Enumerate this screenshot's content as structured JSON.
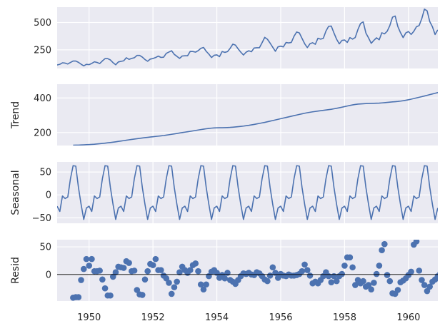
{
  "chart_data": {
    "type": "line",
    "x_range": [
      1949.0,
      1960.92
    ],
    "x_ticks": [
      1950,
      1952,
      1954,
      1956,
      1958,
      1960
    ],
    "x_tick_labels": [
      "1950",
      "1952",
      "1954",
      "1956",
      "1958",
      "1960"
    ],
    "panels": [
      {
        "name": "observed",
        "ylabel": "",
        "kind": "line",
        "ylim": [
          80,
          640
        ],
        "y_ticks": [
          250,
          500
        ],
        "y_tick_labels": [
          "250",
          "500"
        ],
        "x_start": 1949.0,
        "step": 0.0833333,
        "values": [
          112,
          118,
          132,
          129,
          121,
          135,
          148,
          148,
          136,
          119,
          104,
          118,
          115,
          126,
          141,
          135,
          125,
          149,
          170,
          170,
          158,
          133,
          114,
          140,
          145,
          150,
          178,
          163,
          172,
          178,
          199,
          199,
          184,
          162,
          146,
          166,
          171,
          180,
          193,
          181,
          183,
          218,
          230,
          242,
          209,
          191,
          172,
          194,
          196,
          196,
          236,
          235,
          229,
          243,
          264,
          272,
          237,
          211,
          180,
          201,
          204,
          188,
          235,
          227,
          234,
          264,
          302,
          293,
          259,
          229,
          203,
          229,
          242,
          233,
          267,
          269,
          270,
          315,
          364,
          347,
          312,
          274,
          237,
          278,
          284,
          277,
          317,
          313,
          318,
          374,
          413,
          405,
          355,
          306,
          271,
          306,
          315,
          301,
          356,
          348,
          355,
          422,
          465,
          467,
          404,
          347,
          305,
          336,
          340,
          318,
          362,
          348,
          363,
          435,
          491,
          505,
          404,
          359,
          310,
          337,
          360,
          342,
          406,
          396,
          420,
          472,
          548,
          559,
          463,
          407,
          362,
          405,
          417,
          391,
          419,
          461,
          472,
          535,
          622,
          606,
          508,
          461,
          390,
          432
        ]
      },
      {
        "name": "trend",
        "ylabel": "Trend",
        "kind": "line",
        "ylim": [
          125,
          480
        ],
        "y_ticks": [
          200,
          400
        ],
        "y_tick_labels": [
          "200",
          "400"
        ],
        "x_start": 1949.5,
        "step": 0.0833333,
        "values": [
          126.8,
          127.2,
          127.6,
          128.3,
          129.0,
          129.8,
          130.6,
          131.6,
          132.6,
          134.0,
          135.5,
          137.0,
          138.8,
          140.6,
          142.4,
          144.5,
          146.6,
          148.9,
          151.0,
          153.4,
          155.7,
          158.0,
          160.2,
          162.4,
          164.6,
          166.6,
          168.5,
          170.5,
          172.4,
          174.2,
          176.0,
          177.6,
          179.1,
          180.9,
          182.8,
          185.2,
          187.5,
          190.0,
          192.5,
          195.0,
          197.5,
          200.0,
          202.4,
          204.8,
          207.0,
          209.6,
          212.2,
          214.8,
          217.4,
          219.8,
          222.0,
          223.8,
          225.6,
          226.8,
          227.6,
          227.9,
          228.1,
          228.4,
          229.0,
          229.8,
          231.0,
          232.5,
          234.0,
          235.8,
          237.5,
          239.8,
          242.0,
          244.6,
          247.2,
          250.0,
          253.0,
          256.0,
          259.0,
          262.5,
          266.0,
          269.6,
          273.0,
          276.6,
          280.2,
          283.8,
          287.4,
          291.0,
          294.5,
          298.0,
          301.5,
          305.0,
          308.5,
          311.8,
          314.8,
          317.5,
          320.0,
          322.2,
          324.5,
          326.6,
          328.6,
          330.6,
          332.7,
          334.9,
          337.5,
          340.5,
          343.6,
          347.0,
          350.3,
          353.7,
          357.0,
          360.0,
          362.5,
          364.5,
          365.8,
          366.8,
          367.6,
          368.2,
          368.7,
          369.2,
          369.7,
          370.4,
          371.6,
          373.0,
          374.5,
          376.0,
          377.5,
          378.8,
          380.1,
          382.0,
          384.2,
          387.0,
          390.0,
          393.4,
          397.0,
          400.6,
          404.2,
          407.8,
          411.5,
          415.5,
          419.5,
          423.5,
          427.5,
          431.3,
          435.0,
          438.5,
          442.0,
          445.5,
          449.0,
          452.5,
          456.0,
          459.5,
          462.5,
          465.5,
          468.0,
          470.5
        ]
      },
      {
        "name": "seasonal",
        "ylabel": "Seasonal",
        "kind": "line",
        "ylim": [
          -62,
          72
        ],
        "y_ticks": [
          -50,
          0,
          50
        ],
        "y_tick_labels": [
          "−50",
          "0",
          "50"
        ],
        "x_start": 1949.0,
        "pattern": [
          -24.75,
          -36.19,
          -2.24,
          -8.04,
          -4.51,
          35.4,
          63.83,
          62.82,
          16.52,
          -20.64,
          -53.59,
          -28.62
        ]
      },
      {
        "name": "resid",
        "ylabel": "Resid",
        "kind": "scatter",
        "ylim": [
          -48,
          63
        ],
        "y_ticks": [
          0,
          50
        ],
        "y_tick_labels": [
          "0",
          "50"
        ],
        "x_start": 1949.5,
        "step": 0.0833333,
        "values": [
          -42,
          -41,
          -41,
          -10,
          10,
          28,
          16,
          28,
          6,
          6,
          7,
          -9,
          -25,
          -38,
          -38,
          -4,
          4,
          14,
          13,
          12,
          24,
          21,
          6,
          7,
          -28,
          -36,
          -37,
          -9,
          6,
          19,
          17,
          28,
          8,
          8,
          -2,
          -7,
          -15,
          -35,
          -23,
          -13,
          4,
          14,
          8,
          3,
          8,
          17,
          20,
          6,
          -18,
          -27,
          -18,
          -3,
          5,
          8,
          3,
          -6,
          -1,
          -7,
          3,
          -10,
          -13,
          -17,
          -10,
          -3,
          2,
          1,
          3,
          0,
          -1,
          4,
          2,
          -3,
          -9,
          -12,
          -2,
          13,
          3,
          -6,
          1,
          -2,
          -3,
          0,
          -2,
          -2,
          -1,
          1,
          6,
          18,
          8,
          -2,
          -16,
          -13,
          -16,
          -10,
          -3,
          4,
          -3,
          -14,
          -3,
          -12,
          -3,
          1,
          16,
          31,
          31,
          13,
          -19,
          -10,
          -16,
          -12,
          -22,
          -19,
          -27,
          -15,
          1,
          16,
          44,
          55,
          -1,
          -12,
          -34,
          -35,
          -28,
          -14,
          -11,
          -7,
          -1,
          5,
          54,
          60,
          7,
          -10,
          -19,
          -30,
          -22,
          -13,
          -9,
          -3,
          2,
          4,
          22,
          -40
        ]
      }
    ]
  }
}
